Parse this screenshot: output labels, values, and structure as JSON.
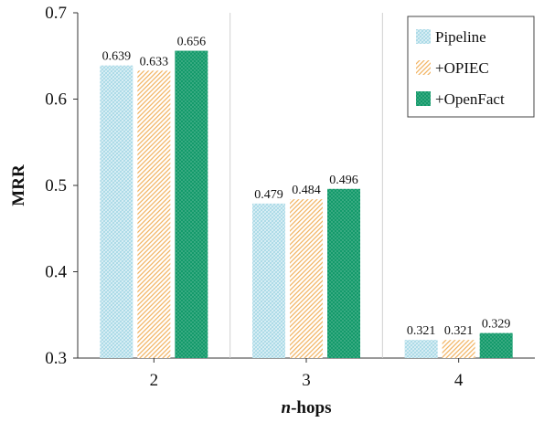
{
  "chart_data": {
    "type": "bar",
    "categories": [
      "2",
      "3",
      "4"
    ],
    "series": [
      {
        "name": "Pipeline",
        "values": [
          0.639,
          0.479,
          0.321
        ],
        "color": "#bfe4ee",
        "pattern": "diagonal-hatch"
      },
      {
        "name": "+OPIEC",
        "values": [
          0.633,
          0.484,
          0.321
        ],
        "color": "#f6c78a",
        "pattern": "diagonal-stripes"
      },
      {
        "name": "+OpenFact",
        "values": [
          0.656,
          0.496,
          0.329
        ],
        "color": "#149a6b",
        "pattern": "dots"
      }
    ],
    "data_labels": [
      [
        "0.639",
        "0.479",
        "0.321"
      ],
      [
        "0.633",
        "0.484",
        "0.321"
      ],
      [
        "0.656",
        "0.496",
        "0.329"
      ]
    ],
    "title": "",
    "xlabel_italic": "n",
    "xlabel_rest": "-hops",
    "ylabel": "MRR",
    "ylim": [
      0.3,
      0.7
    ],
    "yticks": [
      0.3,
      0.4,
      0.5,
      0.6,
      0.7
    ],
    "ytick_labels": [
      "0.3",
      "0.4",
      "0.5",
      "0.6",
      "0.7"
    ],
    "grid": false,
    "category_separators": true,
    "legend_position": "top-right"
  }
}
